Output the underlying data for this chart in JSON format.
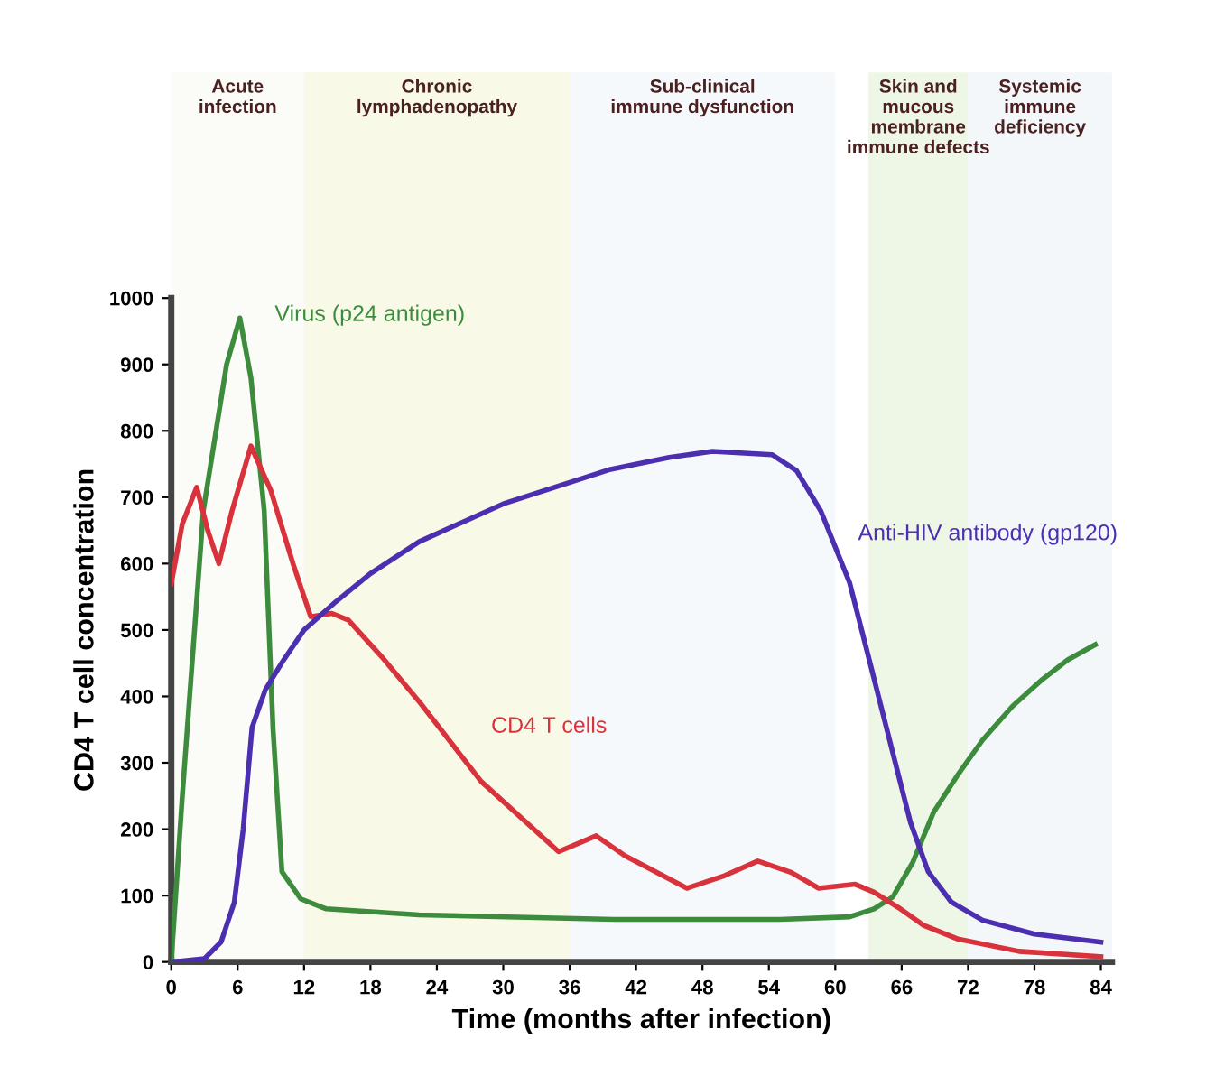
{
  "chart_data": {
    "type": "line",
    "xlabel": "Time (months after infection)",
    "ylabel": "CD4 T cell concentration",
    "xlim": [
      0,
      85
    ],
    "xticks": [
      0,
      6,
      12,
      18,
      24,
      30,
      36,
      42,
      48,
      54,
      60,
      66,
      72,
      78,
      84
    ],
    "ylim": [
      0,
      1000
    ],
    "yticks": [
      0,
      100,
      200,
      300,
      400,
      500,
      600,
      700,
      800,
      900,
      1000
    ],
    "grid": false,
    "legend": false,
    "marker": "none",
    "line_style": "solid",
    "series": [
      {
        "name": "Virus (p24 antigen)",
        "color": "#3d8c3d",
        "x": [
          0,
          1,
          2.9,
          5,
          6.2,
          7.2,
          8.4,
          9.2,
          10,
          11.7,
          14,
          22.4,
          40,
          55,
          61.3,
          63.5,
          65.2,
          67,
          68.9,
          71,
          73.3,
          76,
          78.6,
          81,
          83.5
        ],
        "values": [
          0,
          250,
          680,
          900,
          970,
          880,
          680,
          350,
          136,
          95,
          80,
          71,
          64,
          64,
          68,
          80,
          98,
          150,
          226,
          280,
          334,
          385,
          424,
          455,
          478
        ]
      },
      {
        "name": "CD4 T cells",
        "color": "#d8323c",
        "x": [
          0,
          1,
          2.3,
          3.3,
          4.3,
          5.5,
          7.2,
          9,
          11,
          12.6,
          14.5,
          16,
          19,
          22.5,
          28,
          35,
          38.4,
          41,
          46.6,
          50,
          53,
          56,
          58.5,
          61.8,
          63.5,
          65.7,
          68,
          71,
          76.6,
          84
        ],
        "values": [
          570,
          660,
          715,
          650,
          600,
          680,
          777,
          710,
          600,
          520,
          525,
          515,
          460,
          390,
          272,
          166,
          190,
          160,
          111,
          130,
          152,
          135,
          111,
          117,
          105,
          82,
          55,
          35,
          16,
          8
        ]
      },
      {
        "name": "Anti-HIV antibody (gp120)",
        "color": "#4b2fb0",
        "x": [
          0,
          3,
          4.5,
          5.7,
          6.5,
          7.3,
          8.5,
          10,
          12,
          14.9,
          18,
          22.4,
          30,
          39.7,
          45,
          48.9,
          54.3,
          56.5,
          58.7,
          61.3,
          63.3,
          65.2,
          66.8,
          68.4,
          70.5,
          73.3,
          78,
          84
        ],
        "values": [
          0,
          5,
          30,
          90,
          200,
          353,
          410,
          451,
          500,
          543,
          585,
          633,
          690,
          742,
          760,
          769,
          764,
          740,
          679,
          571,
          440,
          315,
          210,
          136,
          90,
          63,
          42,
          30
        ]
      }
    ],
    "bands": [
      {
        "axis": "x",
        "from": 0,
        "to": 12,
        "label": "Acute\ninfection",
        "color": "#fbfbf7"
      },
      {
        "axis": "x",
        "from": 12,
        "to": 36,
        "label": "Chronic\nlymphadenopathy",
        "color": "#f8f9e6"
      },
      {
        "axis": "x",
        "from": 36,
        "to": 60,
        "label": "Sub-clinical\nimmune dysfunction",
        "color": "#f6f9fb"
      },
      {
        "axis": "x",
        "from": 63,
        "to": 72,
        "label": "Skin and\nmucous\nmembrane\nimmune defects",
        "color": "#eef6e6"
      },
      {
        "axis": "x",
        "from": 72,
        "to": 85,
        "label": "Systemic\nimmune\ndeficiency",
        "color": "#f3f7fa"
      }
    ]
  }
}
